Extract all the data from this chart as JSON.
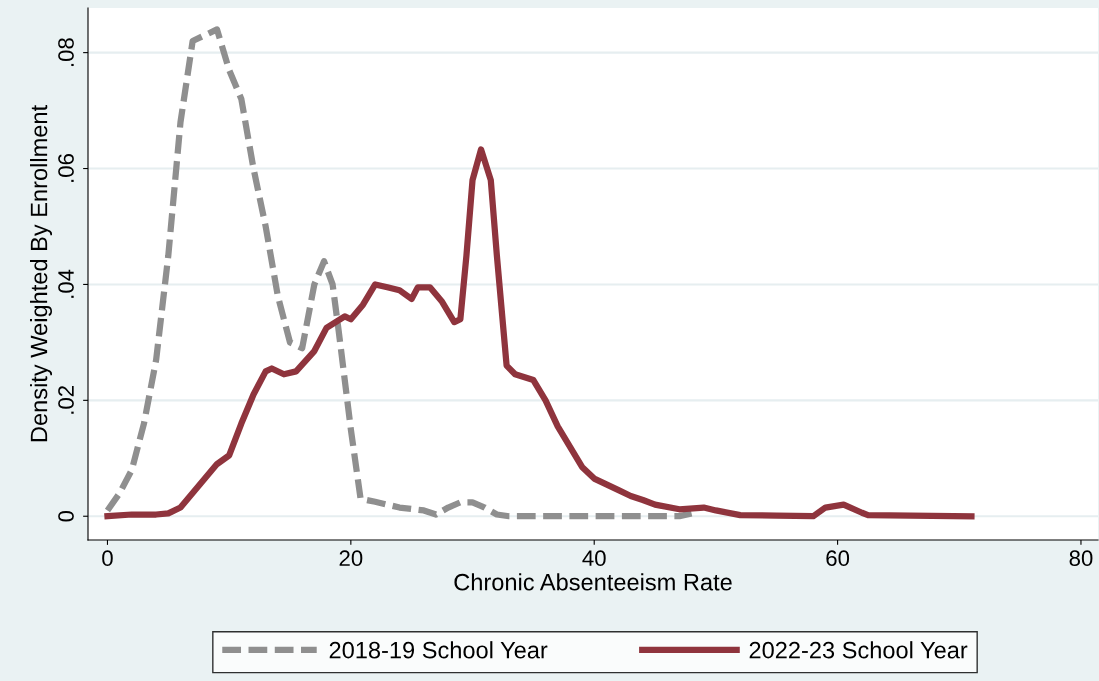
{
  "chart_data": {
    "type": "line",
    "xlabel": "Chronic Absenteeism Rate",
    "ylabel": "Density Weighted By Enrollment",
    "xlim": [
      -1.6,
      81.4
    ],
    "xticks": [
      0,
      20,
      40,
      60,
      80
    ],
    "ylim": [
      -0.0041,
      0.0877
    ],
    "yticks": [
      {
        "value": 0,
        "label": "0"
      },
      {
        "value": 0.02,
        "label": ".02"
      },
      {
        "value": 0.04,
        "label": ".04"
      },
      {
        "value": 0.06,
        "label": ".06"
      },
      {
        "value": 0.08,
        "label": ".08"
      }
    ],
    "grid": "y",
    "legend": "bottom",
    "series": [
      {
        "name": "2018-19 School Year",
        "color": "#8f8f8f",
        "line_style": "dashed",
        "x": [
          0,
          1,
          2,
          3,
          4,
          5,
          6,
          7,
          8,
          9,
          10,
          11,
          12,
          13,
          14,
          15,
          16,
          17,
          17.8,
          18.5,
          19,
          20,
          20.8,
          22,
          24,
          26,
          27,
          28,
          29,
          30,
          31,
          32,
          33,
          40,
          47,
          48
        ],
        "values": [
          0.001,
          0.004,
          0.008,
          0.016,
          0.027,
          0.045,
          0.068,
          0.082,
          0.083,
          0.084,
          0.077,
          0.072,
          0.06,
          0.05,
          0.038,
          0.03,
          0.029,
          0.04,
          0.044,
          0.04,
          0.032,
          0.015,
          0.003,
          0.0025,
          0.0015,
          0.001,
          0.0003,
          0.0015,
          0.0024,
          0.0024,
          0.0015,
          0.0003,
          0,
          0,
          0,
          0.0005
        ]
      },
      {
        "name": "2022-23 School Year",
        "color": "#8f343d",
        "line_style": "solid",
        "x": [
          0,
          2,
          4,
          5,
          6,
          7,
          8,
          9,
          10,
          11,
          12,
          13,
          13.5,
          14.5,
          15.5,
          17,
          18,
          19.5,
          20,
          21,
          22,
          23,
          24,
          25,
          25.5,
          26.5,
          27.5,
          28.5,
          29,
          29.5,
          30,
          30.7,
          31.5,
          32,
          32.8,
          33.5,
          35,
          36,
          37,
          38,
          39,
          40,
          41,
          42,
          43,
          44,
          45,
          47,
          49,
          50,
          52,
          55,
          58,
          59,
          60.5,
          62,
          62.5,
          66,
          71
        ],
        "values": [
          0,
          0.0003,
          0.0003,
          0.0005,
          0.0015,
          0.004,
          0.0065,
          0.009,
          0.0105,
          0.016,
          0.021,
          0.025,
          0.0255,
          0.0245,
          0.025,
          0.0285,
          0.0325,
          0.0345,
          0.034,
          0.0365,
          0.04,
          0.0395,
          0.039,
          0.0375,
          0.0395,
          0.0395,
          0.037,
          0.0335,
          0.034,
          0.045,
          0.058,
          0.0633,
          0.058,
          0.045,
          0.026,
          0.0245,
          0.0235,
          0.02,
          0.0155,
          0.012,
          0.0085,
          0.0065,
          0.0055,
          0.0045,
          0.0035,
          0.0028,
          0.002,
          0.0012,
          0.0015,
          0.001,
          0.0002,
          0.0001,
          0,
          0.0015,
          0.002,
          0.0006,
          0.0002,
          0.0001,
          0
        ]
      }
    ]
  }
}
